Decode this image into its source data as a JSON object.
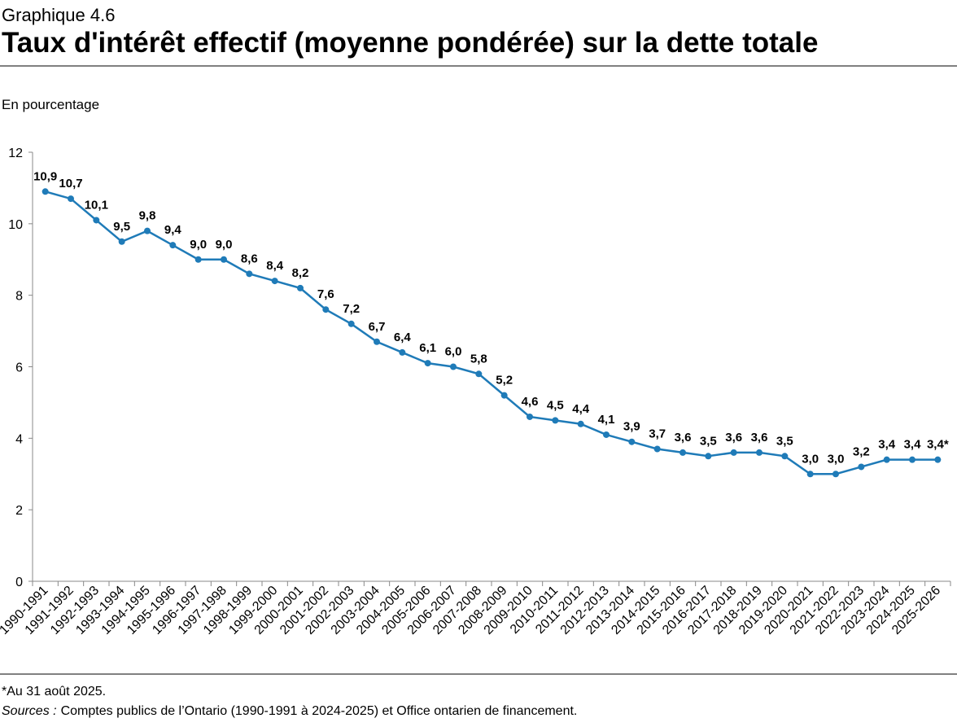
{
  "chart_data": {
    "type": "line",
    "supertitle": "Graphique 4.6",
    "title": "Taux d'intérêt effectif (moyenne pondérée) sur la dette totale",
    "y_label": "En pourcentage",
    "categories": [
      "1990-1991",
      "1991-1992",
      "1992-1993",
      "1993-1994",
      "1994-1995",
      "1995-1996",
      "1996-1997",
      "1997-1998",
      "1998-1999",
      "1999-2000",
      "2000-2001",
      "2001-2002",
      "2002-2003",
      "2003-2004",
      "2004-2005",
      "2005-2006",
      "2006-2007",
      "2007-2008",
      "2008-2009",
      "2009-2010",
      "2010-2011",
      "2011-2012",
      "2012-2013",
      "2013-2014",
      "2014-2015",
      "2015-2016",
      "2016-2017",
      "2017-2018",
      "2018-2019",
      "2019-2020",
      "2020-2021",
      "2021-2022",
      "2022-2023",
      "2023-2024",
      "2024-2025",
      "2025-2026"
    ],
    "values": [
      10.9,
      10.7,
      10.1,
      9.5,
      9.8,
      9.4,
      9.0,
      9.0,
      8.6,
      8.4,
      8.2,
      7.6,
      7.2,
      6.7,
      6.4,
      6.1,
      6.0,
      5.8,
      5.2,
      4.6,
      4.5,
      4.4,
      4.1,
      3.9,
      3.7,
      3.6,
      3.5,
      3.6,
      3.6,
      3.5,
      3.0,
      3.0,
      3.2,
      3.4,
      3.4,
      3.4
    ],
    "value_labels": [
      "10,9",
      "10,7",
      "10,1",
      "9,5",
      "9,8",
      "9,4",
      "9,0",
      "9,0",
      "8,6",
      "8,4",
      "8,2",
      "7,6",
      "7,2",
      "6,7",
      "6,4",
      "6,1",
      "6,0",
      "5,8",
      "5,2",
      "4,6",
      "4,5",
      "4,4",
      "4,1",
      "3,9",
      "3,7",
      "3,6",
      "3,5",
      "3,6",
      "3,6",
      "3,5",
      "3,0",
      "3,0",
      "3,2",
      "3,4",
      "3,4",
      "3,4*"
    ],
    "color": "#1f7bb8",
    "ylim": [
      0,
      12
    ],
    "yticks": [
      0,
      2,
      4,
      6,
      8,
      10,
      12
    ],
    "grid": false
  },
  "note": "*Au 31 août 2025.",
  "sources": {
    "label": "Sources :",
    "text": "Comptes publics de l’Ontario (1990-1991 à 2024-2025) et Office ontarien de financement."
  }
}
